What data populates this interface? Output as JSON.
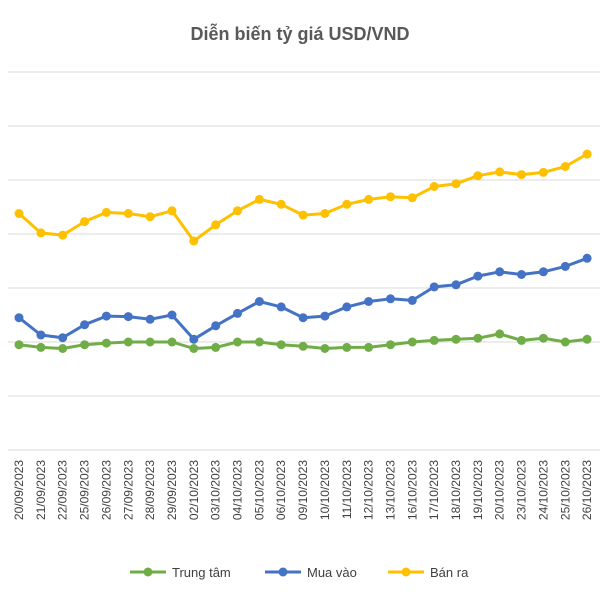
{
  "chart_data": {
    "type": "line",
    "title": "Diễn biến tỷ giá USD/VND",
    "xlabel": "",
    "ylabel": "",
    "y_tick_labels_visible": false,
    "grid": "horizontal",
    "legend_position": "bottom",
    "categories": [
      "20/09/2023",
      "21/09/2023",
      "22/09/2023",
      "25/09/2023",
      "26/09/2023",
      "27/09/2023",
      "28/09/2023",
      "29/09/2023",
      "02/10/2023",
      "03/10/2023",
      "04/10/2023",
      "05/10/2023",
      "06/10/2023",
      "09/10/2023",
      "10/10/2023",
      "11/10/2023",
      "12/10/2023",
      "13/10/2023",
      "16/10/2023",
      "17/10/2023",
      "18/10/2023",
      "19/10/2023",
      "20/10/2023",
      "23/10/2023",
      "24/10/2023",
      "25/10/2023",
      "26/10/2023"
    ],
    "series": [
      {
        "name": "Trung tâm",
        "color": "#70AD47",
        "values": [
          -0.55,
          -0.6,
          -0.62,
          -0.55,
          -0.52,
          -0.5,
          -0.5,
          -0.5,
          -0.62,
          -0.6,
          -0.5,
          -0.5,
          -0.55,
          -0.58,
          -0.62,
          -0.6,
          -0.6,
          -0.55,
          -0.5,
          -0.47,
          -0.45,
          -0.43,
          -0.35,
          -0.47,
          -0.43,
          -0.5,
          -0.45
        ]
      },
      {
        "name": "Mua vào",
        "color": "#4472C4",
        "values": [
          -0.05,
          -0.37,
          -0.42,
          -0.18,
          -0.02,
          -0.03,
          -0.08,
          0.0,
          -0.45,
          -0.2,
          0.03,
          0.25,
          0.15,
          -0.05,
          -0.02,
          0.15,
          0.25,
          0.3,
          0.27,
          0.52,
          0.56,
          0.72,
          0.8,
          0.75,
          0.8,
          0.9,
          1.05
        ]
      },
      {
        "name": "Bán ra",
        "color": "#FFC000",
        "values": [
          1.88,
          1.52,
          1.48,
          1.73,
          1.9,
          1.88,
          1.82,
          1.93,
          1.37,
          1.67,
          1.93,
          2.14,
          2.05,
          1.85,
          1.88,
          2.05,
          2.14,
          2.19,
          2.17,
          2.38,
          2.43,
          2.58,
          2.65,
          2.6,
          2.64,
          2.75,
          2.98
        ]
      }
    ],
    "ylim": [
      -2.5,
      4.5
    ]
  }
}
